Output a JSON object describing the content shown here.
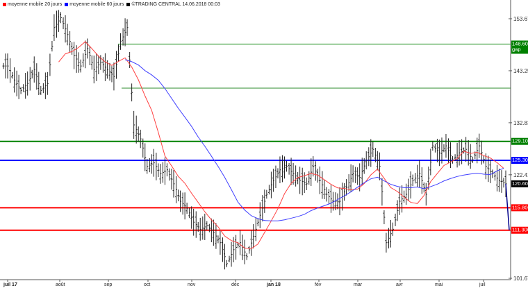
{
  "legend": [
    {
      "label": "moyenne mobile 20 jours",
      "color": "#ff0000"
    },
    {
      "label": "moyenne mobile 60 jours",
      "color": "#0000ff"
    },
    {
      "label": "©TRADING CENTRAL 14.06.2018 00:03",
      "color": "#000000"
    }
  ],
  "chart_data": {
    "type": "line",
    "title": "",
    "ylim": [
      101.67,
      153.67
    ],
    "y_ticks": [
      "153.670",
      "143.250",
      "132.830",
      "122.410",
      "101.670"
    ],
    "y_tick_values": [
      153.67,
      143.25,
      132.83,
      122.41,
      101.67
    ],
    "x_ticks": [
      "juil 17",
      "août",
      "sep",
      "oct",
      "nov",
      "déc",
      "jan 18",
      "fév",
      "mar",
      "avr",
      "mai",
      "juil"
    ],
    "closes": [
      144.2,
      141.4,
      139.3,
      140.7,
      143.5,
      139.3,
      140.7,
      151.9,
      153.9,
      150.5,
      146.3,
      144.2,
      147.7,
      143.5,
      144.9,
      143.5,
      142.1,
      149.1,
      151.9,
      132.4,
      129.6,
      124.1,
      124.8,
      122.6,
      123.4,
      120.6,
      117.1,
      115.7,
      112.9,
      111.5,
      112.2,
      110.8,
      108.8,
      104.6,
      107.4,
      108.8,
      106.0,
      110.1,
      114.3,
      118.5,
      121.3,
      123.4,
      124.1,
      122.6,
      121.3,
      120.6,
      124.1,
      121.3,
      118.5,
      117.1,
      117.1,
      119.9,
      122.6,
      121.9,
      125.3,
      127.5,
      124.1,
      108.8,
      111.5,
      117.1,
      118.5,
      121.3,
      122.6,
      118.5,
      128.2,
      126.8,
      128.2,
      125.4,
      126.8,
      127.5,
      125.4,
      128.2,
      124.1,
      122.6,
      121.3,
      120.6,
      111.3
    ],
    "ma_windows": [
      20,
      60
    ],
    "levels": [
      {
        "value": 148.6,
        "label": "148.600 gap",
        "color": "#008000"
      },
      {
        "value": 139.76,
        "label": "",
        "color": "#2e8b2e"
      },
      {
        "value": 129.1,
        "label": "129.100",
        "color": "#008000"
      },
      {
        "value": 125.3,
        "label": "125.300",
        "color": "#0000ff"
      },
      {
        "value": 120.6,
        "label": "120.600",
        "color": "#000000",
        "marker_only": true
      },
      {
        "value": 115.8,
        "label": "115.800",
        "color": "#ff0000"
      },
      {
        "value": 111.3,
        "label": "111.300",
        "color": "#ff0000"
      }
    ]
  }
}
